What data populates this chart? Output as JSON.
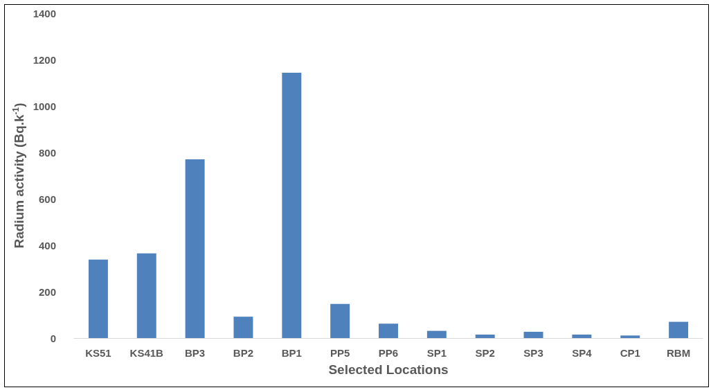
{
  "chart_data": {
    "type": "bar",
    "xlabel": "Selected Locations",
    "ylabel": "Radium activity (Bq.k$^{-1}$)",
    "categories": [
      "KS51",
      "KS41B",
      "BP3",
      "BP2",
      "BP1",
      "PP5",
      "PP6",
      "SP1",
      "SP2",
      "SP3",
      "SP4",
      "CP1",
      "RBM"
    ],
    "values": [
      338,
      365,
      770,
      92,
      1143,
      147,
      62,
      31,
      15,
      27,
      15,
      11,
      70
    ],
    "color": "#4f81bd",
    "ylim": [
      0,
      1400
    ],
    "yticks": [
      0,
      200,
      400,
      600,
      800,
      1000,
      1200,
      1400
    ],
    "grid": false
  }
}
